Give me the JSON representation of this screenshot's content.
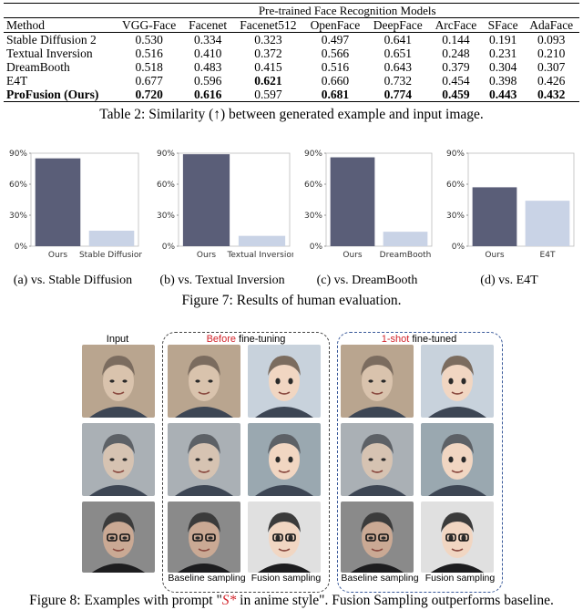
{
  "table": {
    "super_header": "Pre-trained Face Recognition Models",
    "method_header": "Method",
    "columns": [
      "VGG-Face",
      "Facenet",
      "Facenet512",
      "OpenFace",
      "DeepFace",
      "ArcFace",
      "SFace",
      "AdaFace"
    ],
    "rows": [
      {
        "method": "Stable Diffusion 2",
        "values": [
          "0.530",
          "0.334",
          "0.323",
          "0.497",
          "0.641",
          "0.144",
          "0.191",
          "0.093"
        ],
        "bold": [
          false,
          false,
          false,
          false,
          false,
          false,
          false,
          false
        ],
        "method_bold": false
      },
      {
        "method": "Textual Inversion",
        "values": [
          "0.516",
          "0.410",
          "0.372",
          "0.566",
          "0.651",
          "0.248",
          "0.231",
          "0.210"
        ],
        "bold": [
          false,
          false,
          false,
          false,
          false,
          false,
          false,
          false
        ],
        "method_bold": false
      },
      {
        "method": "DreamBooth",
        "values": [
          "0.518",
          "0.483",
          "0.415",
          "0.516",
          "0.643",
          "0.379",
          "0.304",
          "0.307"
        ],
        "bold": [
          false,
          false,
          false,
          false,
          false,
          false,
          false,
          false
        ],
        "method_bold": false
      },
      {
        "method": "E4T",
        "values": [
          "0.677",
          "0.596",
          "0.621",
          "0.660",
          "0.732",
          "0.454",
          "0.398",
          "0.426"
        ],
        "bold": [
          false,
          false,
          true,
          false,
          false,
          false,
          false,
          false
        ],
        "method_bold": false
      },
      {
        "method": "ProFusion (Ours)",
        "values": [
          "0.720",
          "0.616",
          "0.597",
          "0.681",
          "0.774",
          "0.459",
          "0.443",
          "0.432"
        ],
        "bold": [
          true,
          true,
          false,
          true,
          true,
          true,
          true,
          true
        ],
        "method_bold": true
      }
    ],
    "caption": "Table 2: Similarity (↑) between generated example and input image."
  },
  "chart_data": [
    {
      "type": "bar",
      "categories": [
        "Ours",
        "Stable Diffusion"
      ],
      "values": [
        85,
        15
      ],
      "ylim": [
        0,
        90
      ],
      "yticks": [
        "0%",
        "30%",
        "60%",
        "90%"
      ],
      "colors": [
        "#5a5e78",
        "#c9d3e6"
      ],
      "subcaption": "(a) vs. Stable Diffusion"
    },
    {
      "type": "bar",
      "categories": [
        "Ours",
        "Textual Inversion"
      ],
      "values": [
        89,
        10
      ],
      "ylim": [
        0,
        90
      ],
      "yticks": [
        "0%",
        "30%",
        "60%",
        "90%"
      ],
      "colors": [
        "#5a5e78",
        "#c9d3e6"
      ],
      "subcaption": "(b) vs. Textual Inversion"
    },
    {
      "type": "bar",
      "categories": [
        "Ours",
        "DreamBooth"
      ],
      "values": [
        86,
        14
      ],
      "ylim": [
        0,
        90
      ],
      "yticks": [
        "0%",
        "30%",
        "60%",
        "90%"
      ],
      "colors": [
        "#5a5e78",
        "#c9d3e6"
      ],
      "subcaption": "(c) vs. DreamBooth"
    },
    {
      "type": "bar",
      "categories": [
        "Ours",
        "E4T"
      ],
      "values": [
        57,
        44
      ],
      "ylim": [
        0,
        90
      ],
      "yticks": [
        "0%",
        "30%",
        "60%",
        "90%"
      ],
      "colors": [
        "#5a5e78",
        "#c9d3e6"
      ],
      "subcaption": "(d) vs. E4T"
    }
  ],
  "figure7_caption": "Figure 7: Results of human evaluation.",
  "figure8": {
    "input_title": "Input",
    "before_title_red": "Before",
    "before_title_rest": " fine-tuning",
    "after_title_red": "1-shot",
    "after_title_rest": " fine-tuned",
    "baseline_label": "Baseline sampling",
    "fusion_label": "Fusion sampling",
    "caption_part1": "Figure 8: Examples with prompt \"",
    "caption_symbol": "S*",
    "caption_part2": " in anime style\". Fusion Sampling outperforms baseline."
  },
  "colors": {
    "ours": "#5a5e78",
    "baseline": "#c9d3e6",
    "accent_red": "#d2232a",
    "panel_border": "#444444",
    "panel_border_blue": "#3a5a9a"
  }
}
